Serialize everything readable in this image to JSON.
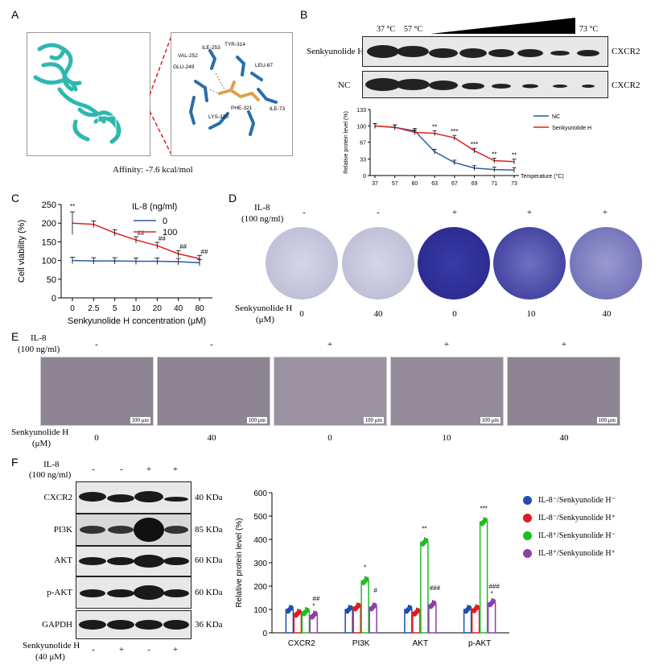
{
  "panels": {
    "A": "A",
    "B": "B",
    "C": "C",
    "D": "D",
    "E": "E",
    "F": "F"
  },
  "panelA": {
    "affinity": "Affinity: -7.6 kcal/mol",
    "residues": [
      "TYR-314",
      "ILE-253",
      "VAL-252",
      "GLU-249",
      "LEU-87",
      "PHE-321",
      "ILE-73",
      "LYS-320"
    ]
  },
  "panelB": {
    "temp_low1": "37 °C",
    "temp_low2": "57 °C",
    "temp_high": "73 °C",
    "row1_label": "Senkyunolide H",
    "row2_label": "NC",
    "target": "CXCR2"
  },
  "colors": {
    "blue": "#2c5ca8",
    "red": "#e02020",
    "green": "#2bb52b",
    "purple": "#7e3fa5",
    "dot_blue": "#1f4fb0",
    "dot_red": "#e41a1c",
    "dot_green": "#22bb22",
    "dot_purple": "#8b3fae"
  },
  "chart_data": [
    {
      "id": "B",
      "type": "line",
      "ylabel": "Relative protein level (%)",
      "xlabel": "Temperature (°C)",
      "categories": [
        "37",
        "57",
        "60",
        "63",
        "67",
        "69",
        "71",
        "73"
      ],
      "ylim": [
        0,
        133
      ],
      "yticks": [
        0,
        33,
        67,
        100,
        133
      ],
      "series": [
        {
          "name": "NC",
          "values": [
            100,
            97,
            90,
            48,
            26,
            15,
            12,
            11
          ]
        },
        {
          "name": "Senkyunolide H",
          "values": [
            100,
            97,
            87,
            85,
            76,
            50,
            30,
            28
          ]
        }
      ],
      "annotations": [
        {
          "category": "63",
          "text": "**"
        },
        {
          "category": "67",
          "text": "***"
        },
        {
          "category": "69",
          "text": "***"
        },
        {
          "category": "71",
          "text": "**"
        },
        {
          "category": "73",
          "text": "**"
        }
      ]
    },
    {
      "id": "C",
      "type": "line",
      "ylabel": "Cell viability (%)",
      "xlabel": "Senkyunolide H concentration (μM)",
      "legend_title": "IL-8 (ng/ml)",
      "categories": [
        "0",
        "2.5",
        "5",
        "10",
        "20",
        "40",
        "80"
      ],
      "ylim": [
        0,
        250
      ],
      "yticks": [
        0,
        50,
        100,
        150,
        200,
        250
      ],
      "series": [
        {
          "name": "0",
          "values": [
            100,
            99,
            99,
            98,
            98,
            97,
            94
          ]
        },
        {
          "name": "100",
          "values": [
            200,
            197,
            174,
            155,
            140,
            118,
            105
          ]
        }
      ],
      "annotations": [
        {
          "category": "0",
          "text": "**"
        },
        {
          "category": "10",
          "text": "##"
        },
        {
          "category": "20",
          "text": "##"
        },
        {
          "category": "40",
          "text": "##"
        },
        {
          "category": "80",
          "text": "##"
        }
      ]
    },
    {
      "id": "F",
      "type": "bar",
      "ylabel": "Relative protein level (%)",
      "categories": [
        "CXCR2",
        "PI3K",
        "AKT",
        "p-AKT"
      ],
      "ylim": [
        0,
        600
      ],
      "yticks": [
        0,
        100,
        200,
        300,
        400,
        500,
        600
      ],
      "series": [
        {
          "name": "IL-8⁻/Senkyunolide H⁻",
          "values": [
            100,
            100,
            100,
            100
          ]
        },
        {
          "name": "IL-8⁻/Senkyunolide H⁺",
          "values": [
            83,
            110,
            88,
            102
          ]
        },
        {
          "name": "IL-8⁺/Senkyunolide H⁻",
          "values": [
            90,
            222,
            388,
            475
          ]
        },
        {
          "name": "IL-8⁺/Senkyunolide H⁺",
          "values": [
            75,
            110,
            120,
            128
          ]
        }
      ],
      "annotations": [
        {
          "category": "CXCR2",
          "series": 3,
          "text": "##"
        },
        {
          "category": "CXCR2",
          "series": 3,
          "text2": "*"
        },
        {
          "category": "PI3K",
          "series": 2,
          "text": "*"
        },
        {
          "category": "PI3K",
          "series": 3,
          "text": "#"
        },
        {
          "category": "AKT",
          "series": 2,
          "text": "**"
        },
        {
          "category": "AKT",
          "series": 3,
          "text": "###"
        },
        {
          "category": "p-AKT",
          "series": 2,
          "text": "***"
        },
        {
          "category": "p-AKT",
          "series": 3,
          "text": "###"
        },
        {
          "category": "p-AKT",
          "series": 3,
          "text2": "*"
        }
      ]
    }
  ],
  "panelD": {
    "il8_label": "IL-8",
    "il8_unit": "(100 ng/ml)",
    "il8_signs": [
      "-",
      "-",
      "+",
      "+",
      "+"
    ],
    "senk_label": "Senkyunolide H",
    "senk_unit": "(μM)",
    "senk_values": [
      "0",
      "40",
      "0",
      "10",
      "40"
    ]
  },
  "panelE": {
    "il8_label": "IL-8",
    "il8_unit": "(100 ng/ml)",
    "il8_signs": [
      "-",
      "-",
      "+",
      "+",
      "+"
    ],
    "senk_label": "Senkyunolide H",
    "senk_unit": "(μM)",
    "senk_values": [
      "0",
      "40",
      "0",
      "10",
      "40"
    ],
    "scalebar": "100 μm"
  },
  "panelF": {
    "il8_label": "IL-8",
    "il8_unit": "(100 ng/ml)",
    "il8_signs": [
      "-",
      "-",
      "+",
      "+"
    ],
    "senk_label": "Senkyunolide H",
    "senk_unit": "(40 μM)",
    "senk_signs": [
      "-",
      "+",
      "-",
      "+"
    ],
    "blots": [
      {
        "name": "CXCR2",
        "kda": "40 KDa"
      },
      {
        "name": "PI3K",
        "kda": "85 KDa"
      },
      {
        "name": "AKT",
        "kda": "60 KDa"
      },
      {
        "name": "p-AKT",
        "kda": "60 KDa"
      },
      {
        "name": "GAPDH",
        "kda": "36 KDa"
      }
    ]
  }
}
